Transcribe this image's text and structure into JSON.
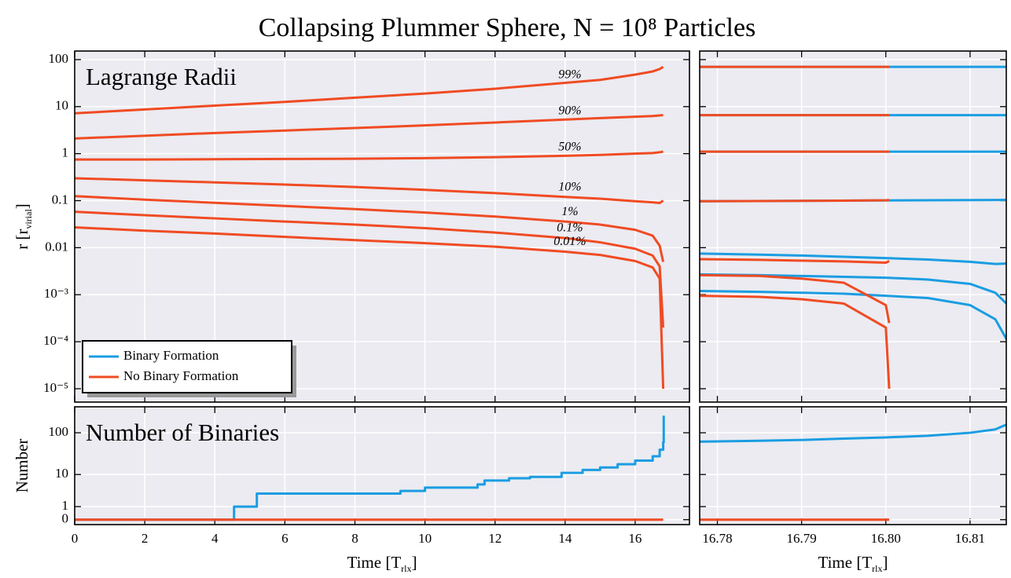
{
  "title": "Collapsing Plummer Sphere, N = 10⁸ Particles",
  "chart_data": [
    {
      "type": "line",
      "annotation": "Lagrange Radii",
      "ylabel": [
        "r [r",
        "virial",
        "]"
      ],
      "xlim": [
        0,
        17.55
      ],
      "xticks": [
        0,
        2,
        4,
        6,
        8,
        10,
        12,
        14,
        16
      ],
      "xtick_labels": false,
      "yscale": "log",
      "ylim": [
        5.2e-06,
        152
      ],
      "yticks": [
        100,
        10,
        1,
        0.1,
        0.01,
        {
          "value": 0.001,
          "label": "10⁻³"
        },
        {
          "value": 0.0001,
          "label": "10⁻⁴"
        },
        {
          "value": 1e-05,
          "label": "10⁻⁵"
        }
      ],
      "grid": true,
      "legend": {
        "corner": "lower left",
        "entries": [
          {
            "name": "Binary Formation",
            "color": "#1a9de2"
          },
          {
            "name": "No Binary Formation",
            "color": "#f04b23"
          }
        ]
      },
      "lines": [
        {
          "color": "#f04b23",
          "label": "99%",
          "x": [
            0,
            2,
            4,
            6,
            8,
            10,
            12,
            14,
            15,
            16,
            16.5,
            16.7,
            16.8
          ],
          "values": [
            7.2,
            8.7,
            10.5,
            12.6,
            15.5,
            19,
            24,
            32,
            37,
            48,
            56,
            63,
            70
          ]
        },
        {
          "color": "#f04b23",
          "label": "90%",
          "x": [
            0,
            2,
            4,
            6,
            8,
            10,
            12,
            14,
            15,
            16,
            16.5,
            16.7,
            16.8
          ],
          "values": [
            2.1,
            2.4,
            2.75,
            3.1,
            3.5,
            4.0,
            4.6,
            5.3,
            5.7,
            6.1,
            6.3,
            6.5,
            6.6
          ]
        },
        {
          "color": "#f04b23",
          "label": "50%",
          "x": [
            0,
            2,
            4,
            6,
            8,
            10,
            12,
            14,
            15,
            16,
            16.5,
            16.7,
            16.8
          ],
          "values": [
            0.75,
            0.75,
            0.76,
            0.77,
            0.78,
            0.8,
            0.84,
            0.9,
            0.94,
            1.0,
            1.03,
            1.07,
            1.1
          ]
        },
        {
          "color": "#f04b23",
          "label": "10%",
          "x": [
            0,
            2,
            4,
            6,
            8,
            10,
            12,
            14,
            15,
            16,
            16.5,
            16.7,
            16.8
          ],
          "values": [
            0.3,
            0.27,
            0.245,
            0.22,
            0.195,
            0.17,
            0.145,
            0.12,
            0.11,
            0.097,
            0.092,
            0.089,
            0.1
          ]
        },
        {
          "color": "#f04b23",
          "label": "1%",
          "x": [
            0,
            2,
            4,
            6,
            8,
            10,
            12,
            14,
            15,
            16,
            16.5,
            16.7,
            16.8
          ],
          "values": [
            0.125,
            0.105,
            0.09,
            0.077,
            0.066,
            0.056,
            0.046,
            0.036,
            0.031,
            0.024,
            0.018,
            0.011,
            0.005
          ]
        },
        {
          "color": "#f04b23",
          "label": "0.1%",
          "x": [
            0,
            2,
            4,
            6,
            8,
            10,
            12,
            14,
            15,
            16,
            16.5,
            16.7,
            16.8
          ],
          "values": [
            0.058,
            0.049,
            0.042,
            0.036,
            0.031,
            0.026,
            0.021,
            0.016,
            0.013,
            0.0095,
            0.0068,
            0.004,
            0.0002
          ]
        },
        {
          "color": "#f04b23",
          "label": "0.01%",
          "x": [
            0,
            2,
            4,
            6,
            8,
            10,
            12,
            14,
            15,
            16,
            16.5,
            16.7,
            16.8
          ],
          "values": [
            0.027,
            0.023,
            0.02,
            0.017,
            0.0145,
            0.0125,
            0.0105,
            0.0082,
            0.007,
            0.0052,
            0.0038,
            0.0022,
            1e-05
          ]
        }
      ]
    },
    {
      "type": "line",
      "xlim": [
        16.7779,
        16.8143
      ],
      "xticks": [
        16.78,
        16.79,
        16.8,
        16.81
      ],
      "xtick_labels": false,
      "yscale": "log",
      "ylim": [
        5.2e-06,
        152
      ],
      "yticks": [
        100,
        10,
        1,
        0.1,
        0.01,
        0.001,
        0.0001,
        1e-05
      ],
      "ytick_labels": false,
      "grid": true,
      "lines": [
        {
          "color": "#1a9de2",
          "x": [
            16.7779,
            16.8152
          ],
          "values": [
            70,
            70
          ]
        },
        {
          "color": "#1a9de2",
          "x": [
            16.7779,
            16.8152
          ],
          "values": [
            6.6,
            6.6
          ]
        },
        {
          "color": "#1a9de2",
          "x": [
            16.7779,
            16.8152
          ],
          "values": [
            1.1,
            1.1
          ]
        },
        {
          "color": "#1a9de2",
          "x": [
            16.7779,
            16.8152
          ],
          "values": [
            0.097,
            0.104
          ]
        },
        {
          "color": "#1a9de2",
          "x": [
            16.7779,
            16.785,
            16.79,
            16.795,
            16.8,
            16.805,
            16.81,
            16.813,
            16.8145,
            16.8152
          ],
          "values": [
            0.0075,
            0.0071,
            0.0068,
            0.0064,
            0.006,
            0.0056,
            0.005,
            0.0045,
            0.0046,
            0.0052
          ]
        },
        {
          "color": "#1a9de2",
          "x": [
            16.7779,
            16.785,
            16.79,
            16.795,
            16.8,
            16.805,
            16.81,
            16.813,
            16.8145,
            16.8152
          ],
          "values": [
            0.0027,
            0.0026,
            0.0025,
            0.0024,
            0.0023,
            0.0021,
            0.0017,
            0.0011,
            0.0006,
            0.0002
          ]
        },
        {
          "color": "#1a9de2",
          "x": [
            16.7779,
            16.785,
            16.79,
            16.795,
            16.8,
            16.805,
            16.81,
            16.813,
            16.8145,
            16.8152
          ],
          "values": [
            0.0012,
            0.00115,
            0.0011,
            0.00105,
            0.00095,
            0.00085,
            0.0006,
            0.0003,
            0.0001,
            1e-05
          ]
        },
        {
          "color": "#f04b23",
          "x": [
            16.7779,
            16.785,
            16.79,
            16.795,
            16.8,
            16.8004
          ],
          "values": [
            70,
            70,
            70,
            70,
            70,
            70
          ]
        },
        {
          "color": "#f04b23",
          "x": [
            16.7779,
            16.785,
            16.79,
            16.795,
            16.8,
            16.8004
          ],
          "values": [
            6.6,
            6.6,
            6.6,
            6.6,
            6.6,
            6.6
          ]
        },
        {
          "color": "#f04b23",
          "x": [
            16.7779,
            16.785,
            16.79,
            16.795,
            16.8,
            16.8004
          ],
          "values": [
            1.1,
            1.1,
            1.1,
            1.1,
            1.1,
            1.1
          ]
        },
        {
          "color": "#f04b23",
          "x": [
            16.7779,
            16.785,
            16.79,
            16.795,
            16.8,
            16.8004
          ],
          "values": [
            0.097,
            0.098,
            0.099,
            0.1,
            0.102,
            0.103
          ]
        },
        {
          "color": "#f04b23",
          "x": [
            16.7779,
            16.785,
            16.79,
            16.795,
            16.8,
            16.8004
          ],
          "values": [
            0.0057,
            0.0055,
            0.0053,
            0.0051,
            0.0048,
            0.0052
          ]
        },
        {
          "color": "#f04b23",
          "x": [
            16.7779,
            16.785,
            16.79,
            16.795,
            16.8,
            16.8004
          ],
          "values": [
            0.0026,
            0.0025,
            0.0022,
            0.0018,
            0.0006,
            0.00025
          ]
        },
        {
          "color": "#f04b23",
          "x": [
            16.7779,
            16.785,
            16.79,
            16.795,
            16.8,
            16.8004
          ],
          "values": [
            0.00095,
            0.0009,
            0.0008,
            0.00065,
            0.0002,
            1e-05
          ]
        }
      ]
    },
    {
      "type": "line",
      "annotation": "Number of Binaries",
      "ylabel": [
        "Number"
      ],
      "xlabel": [
        "Time [T",
        "rlx",
        "]"
      ],
      "xlim": [
        0,
        17.55
      ],
      "xticks": [
        0,
        2,
        4,
        6,
        8,
        10,
        12,
        14,
        16
      ],
      "yscale": "symlog",
      "ylim": [
        -0.3,
        400
      ],
      "yticks": [
        100,
        10,
        1,
        0
      ],
      "grid": true,
      "drawstyle": "steps-post",
      "lines": [
        {
          "color": "#1a9de2",
          "x": [
            0,
            4.55,
            5.2,
            9.3,
            10.0,
            11.5,
            11.7,
            12.4,
            13.0,
            13.9,
            14.5,
            15.0,
            15.5,
            16.0,
            16.5,
            16.7,
            16.8,
            16.815
          ],
          "values": [
            0,
            1,
            3,
            3.6,
            4.5,
            5.5,
            7,
            8,
            8.7,
            11,
            13,
            15,
            18,
            22,
            28,
            40,
            60,
            250
          ]
        },
        {
          "color": "#f04b23",
          "x": [
            0,
            16.8
          ],
          "values": [
            0,
            0
          ]
        }
      ]
    },
    {
      "type": "line",
      "xlabel": [
        "Time [T",
        "rlx",
        "]"
      ],
      "xlim": [
        16.7779,
        16.8143
      ],
      "xticks": [
        16.78,
        16.79,
        {
          "value": 16.8,
          "label": "16.80"
        },
        16.81
      ],
      "yscale": "symlog",
      "ylim": [
        -0.3,
        400
      ],
      "yticks": [
        100,
        10,
        1,
        0
      ],
      "ytick_labels": false,
      "grid": true,
      "lines": [
        {
          "color": "#1a9de2",
          "x": [
            16.7779,
            16.785,
            16.79,
            16.795,
            16.8,
            16.805,
            16.81,
            16.813,
            16.8145,
            16.8152
          ],
          "values": [
            62,
            65,
            68,
            73,
            78,
            85,
            100,
            120,
            160,
            280
          ]
        },
        {
          "color": "#f04b23",
          "x": [
            16.7779,
            16.8004
          ],
          "values": [
            0,
            0
          ]
        }
      ]
    }
  ]
}
